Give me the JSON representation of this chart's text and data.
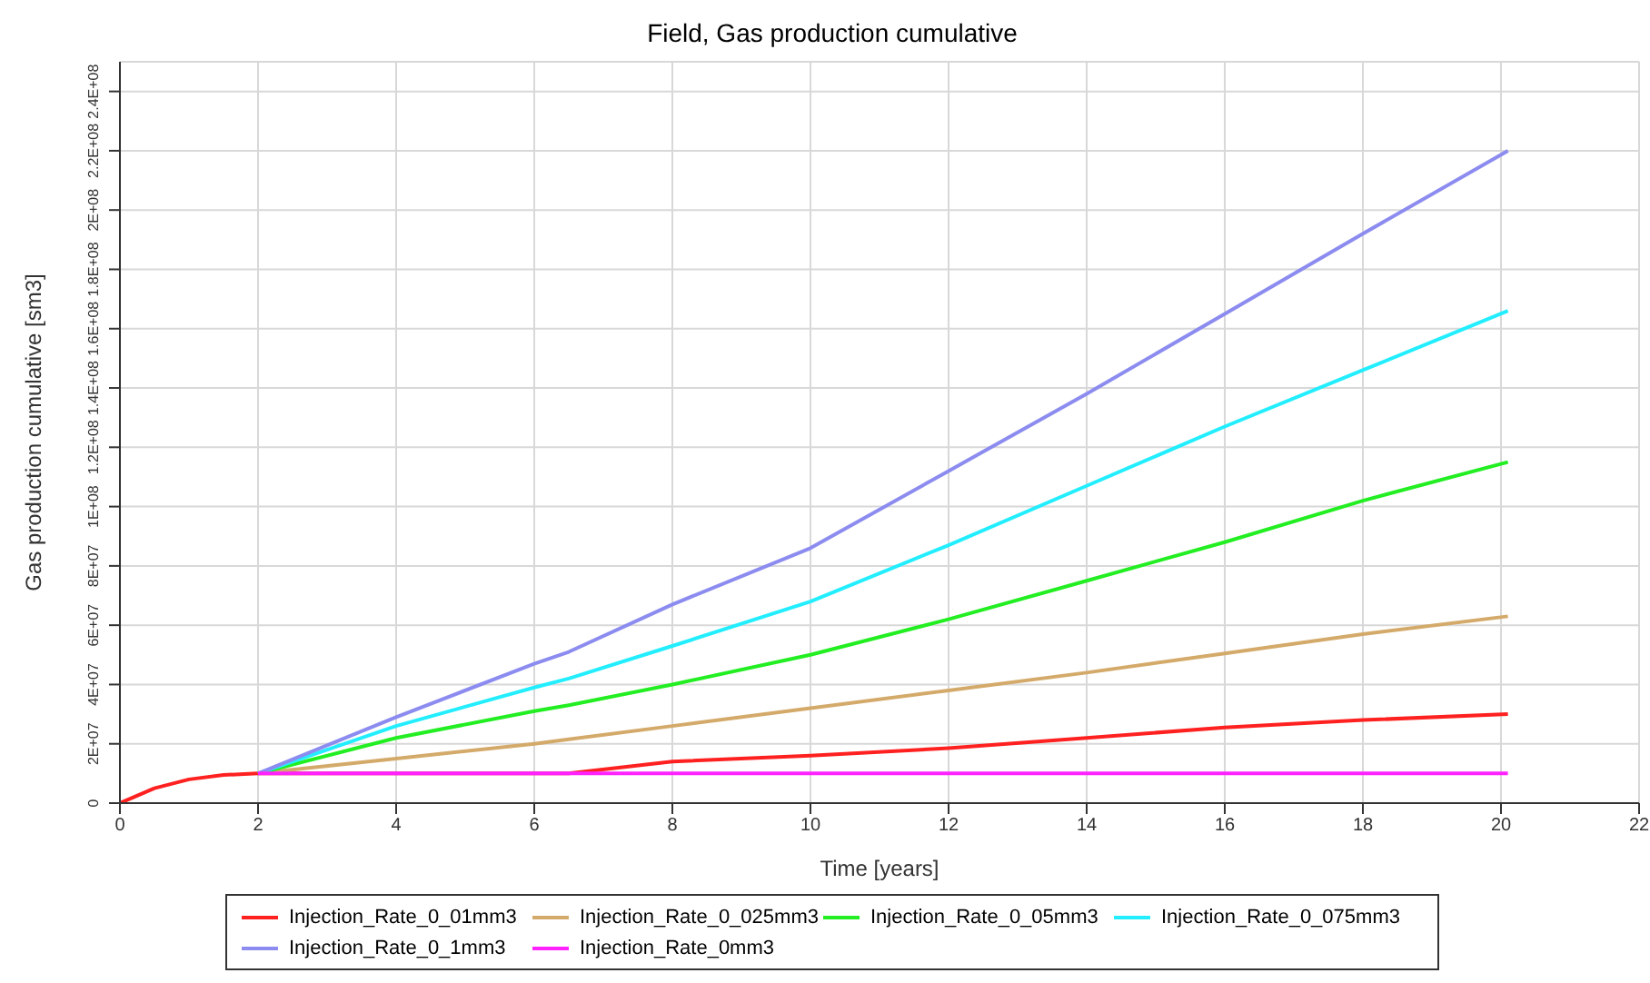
{
  "chart_data": {
    "type": "line",
    "title": "Field, Gas production cumulative",
    "xlabel": "Time [years]",
    "ylabel": "Gas production cumulative [sm3]",
    "x": [
      0,
      0.5,
      1,
      1.5,
      2,
      4,
      6,
      6.5,
      8,
      10,
      12,
      14,
      16,
      18,
      20.1
    ],
    "series": [
      {
        "name": "Injection_Rate_0_01mm3",
        "color": "#ff2020",
        "values": [
          0,
          5000000,
          8000000,
          9500000,
          10000000,
          10000000,
          10000000,
          10000000,
          14000000,
          16000000,
          18500000,
          22000000,
          25500000,
          28000000,
          30000000
        ]
      },
      {
        "name": "Injection_Rate_0_025mm3",
        "color": "#d4aa6a",
        "values": [
          null,
          null,
          null,
          null,
          10000000,
          15000000,
          20000000,
          21500000,
          26000000,
          32000000,
          38000000,
          44000000,
          50500000,
          57000000,
          63000000
        ]
      },
      {
        "name": "Injection_Rate_0_05mm3",
        "color": "#22ee22",
        "values": [
          null,
          null,
          null,
          null,
          10000000,
          22000000,
          31000000,
          33000000,
          40000000,
          50000000,
          62000000,
          75000000,
          88000000,
          102000000,
          115000000
        ]
      },
      {
        "name": "Injection_Rate_0_075mm3",
        "color": "#22eeff",
        "values": [
          null,
          null,
          null,
          null,
          10000000,
          26000000,
          39000000,
          42000000,
          53000000,
          68000000,
          87000000,
          107000000,
          127000000,
          146000000,
          166000000
        ]
      },
      {
        "name": "Injection_Rate_0_1mm3",
        "color": "#8c8cf0",
        "values": [
          null,
          null,
          null,
          null,
          10000000,
          29000000,
          47000000,
          51000000,
          67000000,
          86000000,
          112000000,
          138000000,
          165000000,
          192000000,
          220000000
        ]
      },
      {
        "name": "Injection_Rate_0mm3",
        "color": "#ff22ff",
        "values": [
          null,
          null,
          null,
          null,
          10000000,
          10000000,
          10000000,
          10000000,
          10000000,
          10000000,
          10000000,
          10000000,
          10000000,
          10000000,
          10000000
        ]
      }
    ],
    "xlim": [
      0,
      22
    ],
    "xticks": [
      0,
      2,
      4,
      6,
      8,
      10,
      12,
      14,
      16,
      18,
      20,
      22
    ],
    "ylim": [
      0,
      250000000
    ],
    "yticks": [
      0,
      {
        "value": 20000000,
        "label": "2E+07"
      },
      {
        "value": 40000000,
        "label": "4E+07"
      },
      {
        "value": 60000000,
        "label": "6E+07"
      },
      {
        "value": 80000000,
        "label": "8E+07"
      },
      {
        "value": 100000000,
        "label": "1E+08"
      },
      {
        "value": 120000000,
        "label": "1.2E+08"
      },
      {
        "value": 140000000,
        "label": "1.4E+08"
      },
      {
        "value": 160000000,
        "label": "1.6E+08"
      },
      {
        "value": 180000000,
        "label": "1.8E+08"
      },
      {
        "value": 200000000,
        "label": "2E+08"
      },
      {
        "value": 220000000,
        "label": "2.2E+08"
      },
      {
        "value": 240000000,
        "label": "2.4E+08"
      }
    ],
    "grid": true,
    "legend": "bottom",
    "marker": "none",
    "line_style": "solid"
  }
}
